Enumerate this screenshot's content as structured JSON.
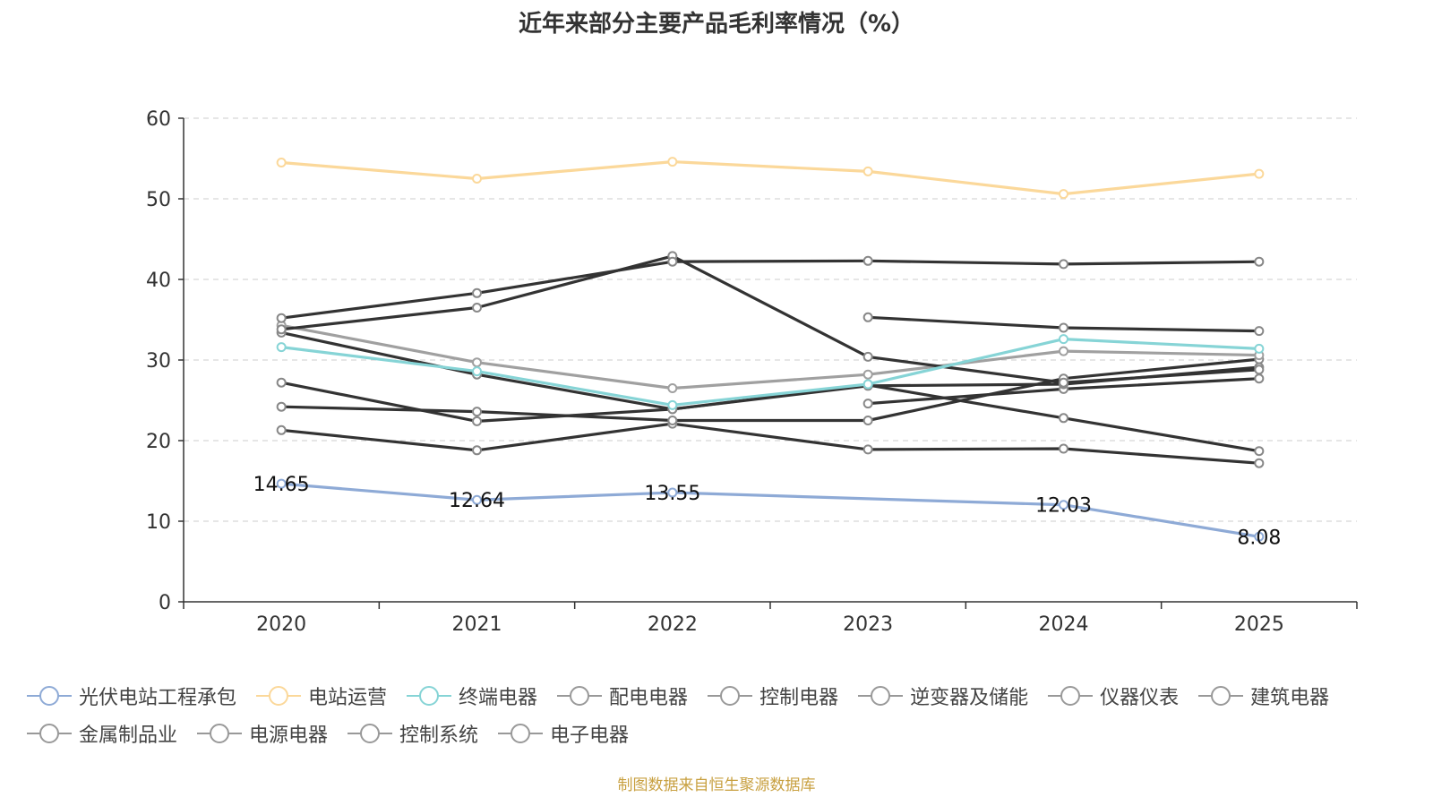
{
  "chart_data": {
    "type": "line",
    "title": "近年来部分主要产品毛利率情况（%）",
    "xlabel": "",
    "ylabel": "",
    "categories": [
      "2020",
      "2021",
      "2022",
      "2023",
      "2024",
      "2025"
    ],
    "ylim": [
      0,
      60
    ],
    "yticks": [
      0,
      10,
      20,
      30,
      40,
      50,
      60
    ],
    "grid": "horizontal-dashed",
    "legend_position": "bottom",
    "series": [
      {
        "name": "光伏电站工程承包",
        "color": "#8eaad6",
        "values": [
          14.65,
          12.64,
          13.55,
          null,
          12.03,
          8.08
        ],
        "labels": [
          "14.65",
          "12.64",
          "13.55",
          null,
          "12.03",
          "8.08"
        ]
      },
      {
        "name": "电站运营",
        "color": "#fbd89a",
        "values": [
          54.5,
          52.5,
          54.6,
          53.4,
          50.6,
          53.1
        ]
      },
      {
        "name": "终端电器",
        "color": "#86d4d6",
        "values": [
          31.6,
          28.6,
          24.4,
          27.0,
          32.6,
          31.4
        ]
      },
      {
        "name": "配电电器",
        "color": "#333333",
        "values": [
          35.2,
          38.3,
          42.2,
          42.3,
          41.9,
          42.2
        ]
      },
      {
        "name": "控制电器",
        "color": "#333333",
        "values": [
          33.8,
          36.5,
          42.9,
          30.4,
          27.2,
          28.8
        ]
      },
      {
        "name": "逆变器及储能",
        "color": "#a0a0a0",
        "values": [
          34.3,
          29.7,
          26.5,
          28.2,
          31.1,
          30.6
        ]
      },
      {
        "name": "仪器仪表",
        "color": "#333333",
        "values": [
          33.4,
          28.2,
          23.9,
          26.9,
          22.8,
          18.7
        ]
      },
      {
        "name": "建筑电器",
        "color": "#333333",
        "values": [
          27.2,
          22.4,
          23.9,
          26.8,
          27.0,
          29.1
        ]
      },
      {
        "name": "金属制品业",
        "color": "#333333",
        "values": [
          24.2,
          23.6,
          22.5,
          22.5,
          27.7,
          30.1
        ]
      },
      {
        "name": "电源电器",
        "color": "#333333",
        "values": [
          21.3,
          18.8,
          22.1,
          18.9,
          19.0,
          17.2
        ]
      },
      {
        "name": "控制系统",
        "color": "#333333",
        "values": [
          null,
          null,
          null,
          35.3,
          34.0,
          33.6
        ]
      },
      {
        "name": "电子电器",
        "color": "#333333",
        "values": [
          null,
          null,
          null,
          24.6,
          26.4,
          27.7
        ]
      }
    ]
  },
  "legend": {
    "rows": [
      [
        "光伏电站工程承包",
        "电站运营",
        "终端电器",
        "配电电器",
        "控制电器",
        "逆变器及储能",
        "仪器仪表",
        "建筑电器"
      ],
      [
        "金属制品业",
        "电源电器",
        "控制系统",
        "电子电器"
      ]
    ],
    "swatch_colors": [
      "#8eaad6",
      "#fbd89a",
      "#86d4d6",
      "#999999",
      "#999999",
      "#999999",
      "#999999",
      "#999999",
      "#999999",
      "#999999",
      "#999999",
      "#999999"
    ]
  },
  "source_note": "制图数据来自恒生聚源数据库"
}
